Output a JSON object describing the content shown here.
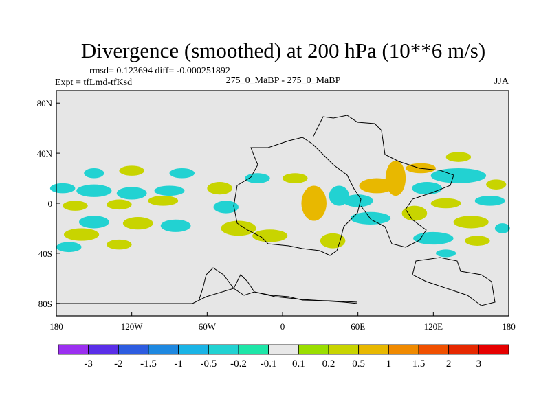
{
  "chart_data": {
    "type": "heatmap",
    "title": "Divergence (smoothed) at 200 hPa (10**6 m/s)",
    "stats_line": "rmsd= 0.123694 diff= -0.000251892",
    "expt_label": "Expt = tfLmd-tfKsd",
    "case_label": "275_0_MaBP - 275_0_MaBP",
    "season": "JJA",
    "x_range": [
      -180,
      180
    ],
    "y_range": [
      -90,
      90
    ],
    "x_ticks": [
      {
        "lon": -180,
        "label": "180"
      },
      {
        "lon": -120,
        "label": "120W"
      },
      {
        "lon": -60,
        "label": "60W"
      },
      {
        "lon": 0,
        "label": "0"
      },
      {
        "lon": 60,
        "label": "60E"
      },
      {
        "lon": 120,
        "label": "120E"
      },
      {
        "lon": 180,
        "label": "180"
      }
    ],
    "y_ticks": [
      {
        "lat": 80,
        "label": "80N"
      },
      {
        "lat": 40,
        "label": "40N"
      },
      {
        "lat": 0,
        "label": "0"
      },
      {
        "lat": -40,
        "label": "40S"
      },
      {
        "lat": -80,
        "label": "80S"
      }
    ],
    "colorbar": {
      "labels": [
        "-3",
        "-2",
        "-1.5",
        "-1",
        "-0.5",
        "-0.2",
        "-0.1",
        "0.1",
        "0.2",
        "0.5",
        "1",
        "1.5",
        "2",
        "3"
      ],
      "colors": [
        "#9b2ff0",
        "#5a2ee8",
        "#2d5ce0",
        "#1e88e0",
        "#1ab4e6",
        "#22d2d2",
        "#1ee6a8",
        "#e8e8e8",
        "#9ade00",
        "#c8d400",
        "#e8b800",
        "#f08a00",
        "#f05000",
        "#e62800",
        "#e60000"
      ]
    },
    "cells": [
      {
        "lon": -175,
        "lat": 12,
        "rx": 10,
        "ry": 4,
        "value": -0.5
      },
      {
        "lon": -150,
        "lat": 10,
        "rx": 14,
        "ry": 5,
        "value": -0.3
      },
      {
        "lon": -120,
        "lat": 8,
        "rx": 12,
        "ry": 5,
        "value": -0.3
      },
      {
        "lon": -90,
        "lat": 10,
        "rx": 12,
        "ry": 4,
        "value": -0.3
      },
      {
        "lon": -165,
        "lat": -2,
        "rx": 10,
        "ry": 4,
        "value": 0.3
      },
      {
        "lon": -130,
        "lat": -1,
        "rx": 10,
        "ry": 4,
        "value": 0.3
      },
      {
        "lon": -95,
        "lat": 2,
        "rx": 12,
        "ry": 4,
        "value": 0.3
      },
      {
        "lon": -150,
        "lat": -15,
        "rx": 12,
        "ry": 5,
        "value": -0.3
      },
      {
        "lon": -115,
        "lat": -16,
        "rx": 12,
        "ry": 5,
        "value": 0.3
      },
      {
        "lon": -160,
        "lat": -25,
        "rx": 14,
        "ry": 5,
        "value": 0.3
      },
      {
        "lon": -85,
        "lat": -18,
        "rx": 12,
        "ry": 5,
        "value": -0.3
      },
      {
        "lon": -170,
        "lat": -35,
        "rx": 10,
        "ry": 4,
        "value": -0.3
      },
      {
        "lon": -130,
        "lat": -33,
        "rx": 10,
        "ry": 4,
        "value": 0.3
      },
      {
        "lon": -150,
        "lat": 24,
        "rx": 8,
        "ry": 4,
        "value": -0.3
      },
      {
        "lon": -120,
        "lat": 26,
        "rx": 10,
        "ry": 4,
        "value": 0.3
      },
      {
        "lon": -80,
        "lat": 24,
        "rx": 10,
        "ry": 4,
        "value": -0.3
      },
      {
        "lon": -50,
        "lat": 12,
        "rx": 10,
        "ry": 5,
        "value": 0.3
      },
      {
        "lon": -35,
        "lat": -20,
        "rx": 14,
        "ry": 6,
        "value": 0.3
      },
      {
        "lon": -45,
        "lat": -3,
        "rx": 10,
        "ry": 5,
        "value": -0.3
      },
      {
        "lon": -10,
        "lat": -26,
        "rx": 14,
        "ry": 5,
        "value": 0.3
      },
      {
        "lon": -20,
        "lat": 20,
        "rx": 10,
        "ry": 4,
        "value": -0.3
      },
      {
        "lon": 10,
        "lat": 20,
        "rx": 10,
        "ry": 4,
        "value": 0.3
      },
      {
        "lon": 25,
        "lat": 0,
        "rx": 10,
        "ry": 14,
        "value": 0.7
      },
      {
        "lon": 45,
        "lat": 6,
        "rx": 8,
        "ry": 8,
        "value": -0.3
      },
      {
        "lon": 40,
        "lat": -30,
        "rx": 10,
        "ry": 6,
        "value": 0.3
      },
      {
        "lon": 60,
        "lat": 2,
        "rx": 12,
        "ry": 5,
        "value": -0.5
      },
      {
        "lon": 75,
        "lat": 14,
        "rx": 14,
        "ry": 6,
        "value": 0.7
      },
      {
        "lon": 90,
        "lat": 20,
        "rx": 8,
        "ry": 14,
        "value": 0.7
      },
      {
        "lon": 70,
        "lat": -12,
        "rx": 16,
        "ry": 5,
        "value": -0.5
      },
      {
        "lon": 105,
        "lat": -8,
        "rx": 10,
        "ry": 6,
        "value": 0.3
      },
      {
        "lon": 115,
        "lat": 12,
        "rx": 12,
        "ry": 5,
        "value": -0.3
      },
      {
        "lon": 130,
        "lat": 0,
        "rx": 12,
        "ry": 4,
        "value": 0.3
      },
      {
        "lon": 140,
        "lat": 22,
        "rx": 22,
        "ry": 6,
        "value": -0.3
      },
      {
        "lon": 140,
        "lat": 37,
        "rx": 10,
        "ry": 4,
        "value": 0.3
      },
      {
        "lon": 110,
        "lat": 28,
        "rx": 12,
        "ry": 4,
        "value": 0.7
      },
      {
        "lon": 165,
        "lat": 2,
        "rx": 12,
        "ry": 4,
        "value": -0.3
      },
      {
        "lon": 150,
        "lat": -15,
        "rx": 14,
        "ry": 5,
        "value": 0.3
      },
      {
        "lon": 120,
        "lat": -28,
        "rx": 16,
        "ry": 5,
        "value": -0.3
      },
      {
        "lon": 155,
        "lat": -30,
        "rx": 10,
        "ry": 4,
        "value": 0.3
      },
      {
        "lon": 130,
        "lat": -40,
        "rx": 8,
        "ry": 3,
        "value": -0.3
      },
      {
        "lon": 170,
        "lat": 15,
        "rx": 8,
        "ry": 4,
        "value": 0.3
      },
      {
        "lon": 175,
        "lat": -20,
        "rx": 6,
        "ry": 4,
        "value": -0.3
      }
    ]
  }
}
